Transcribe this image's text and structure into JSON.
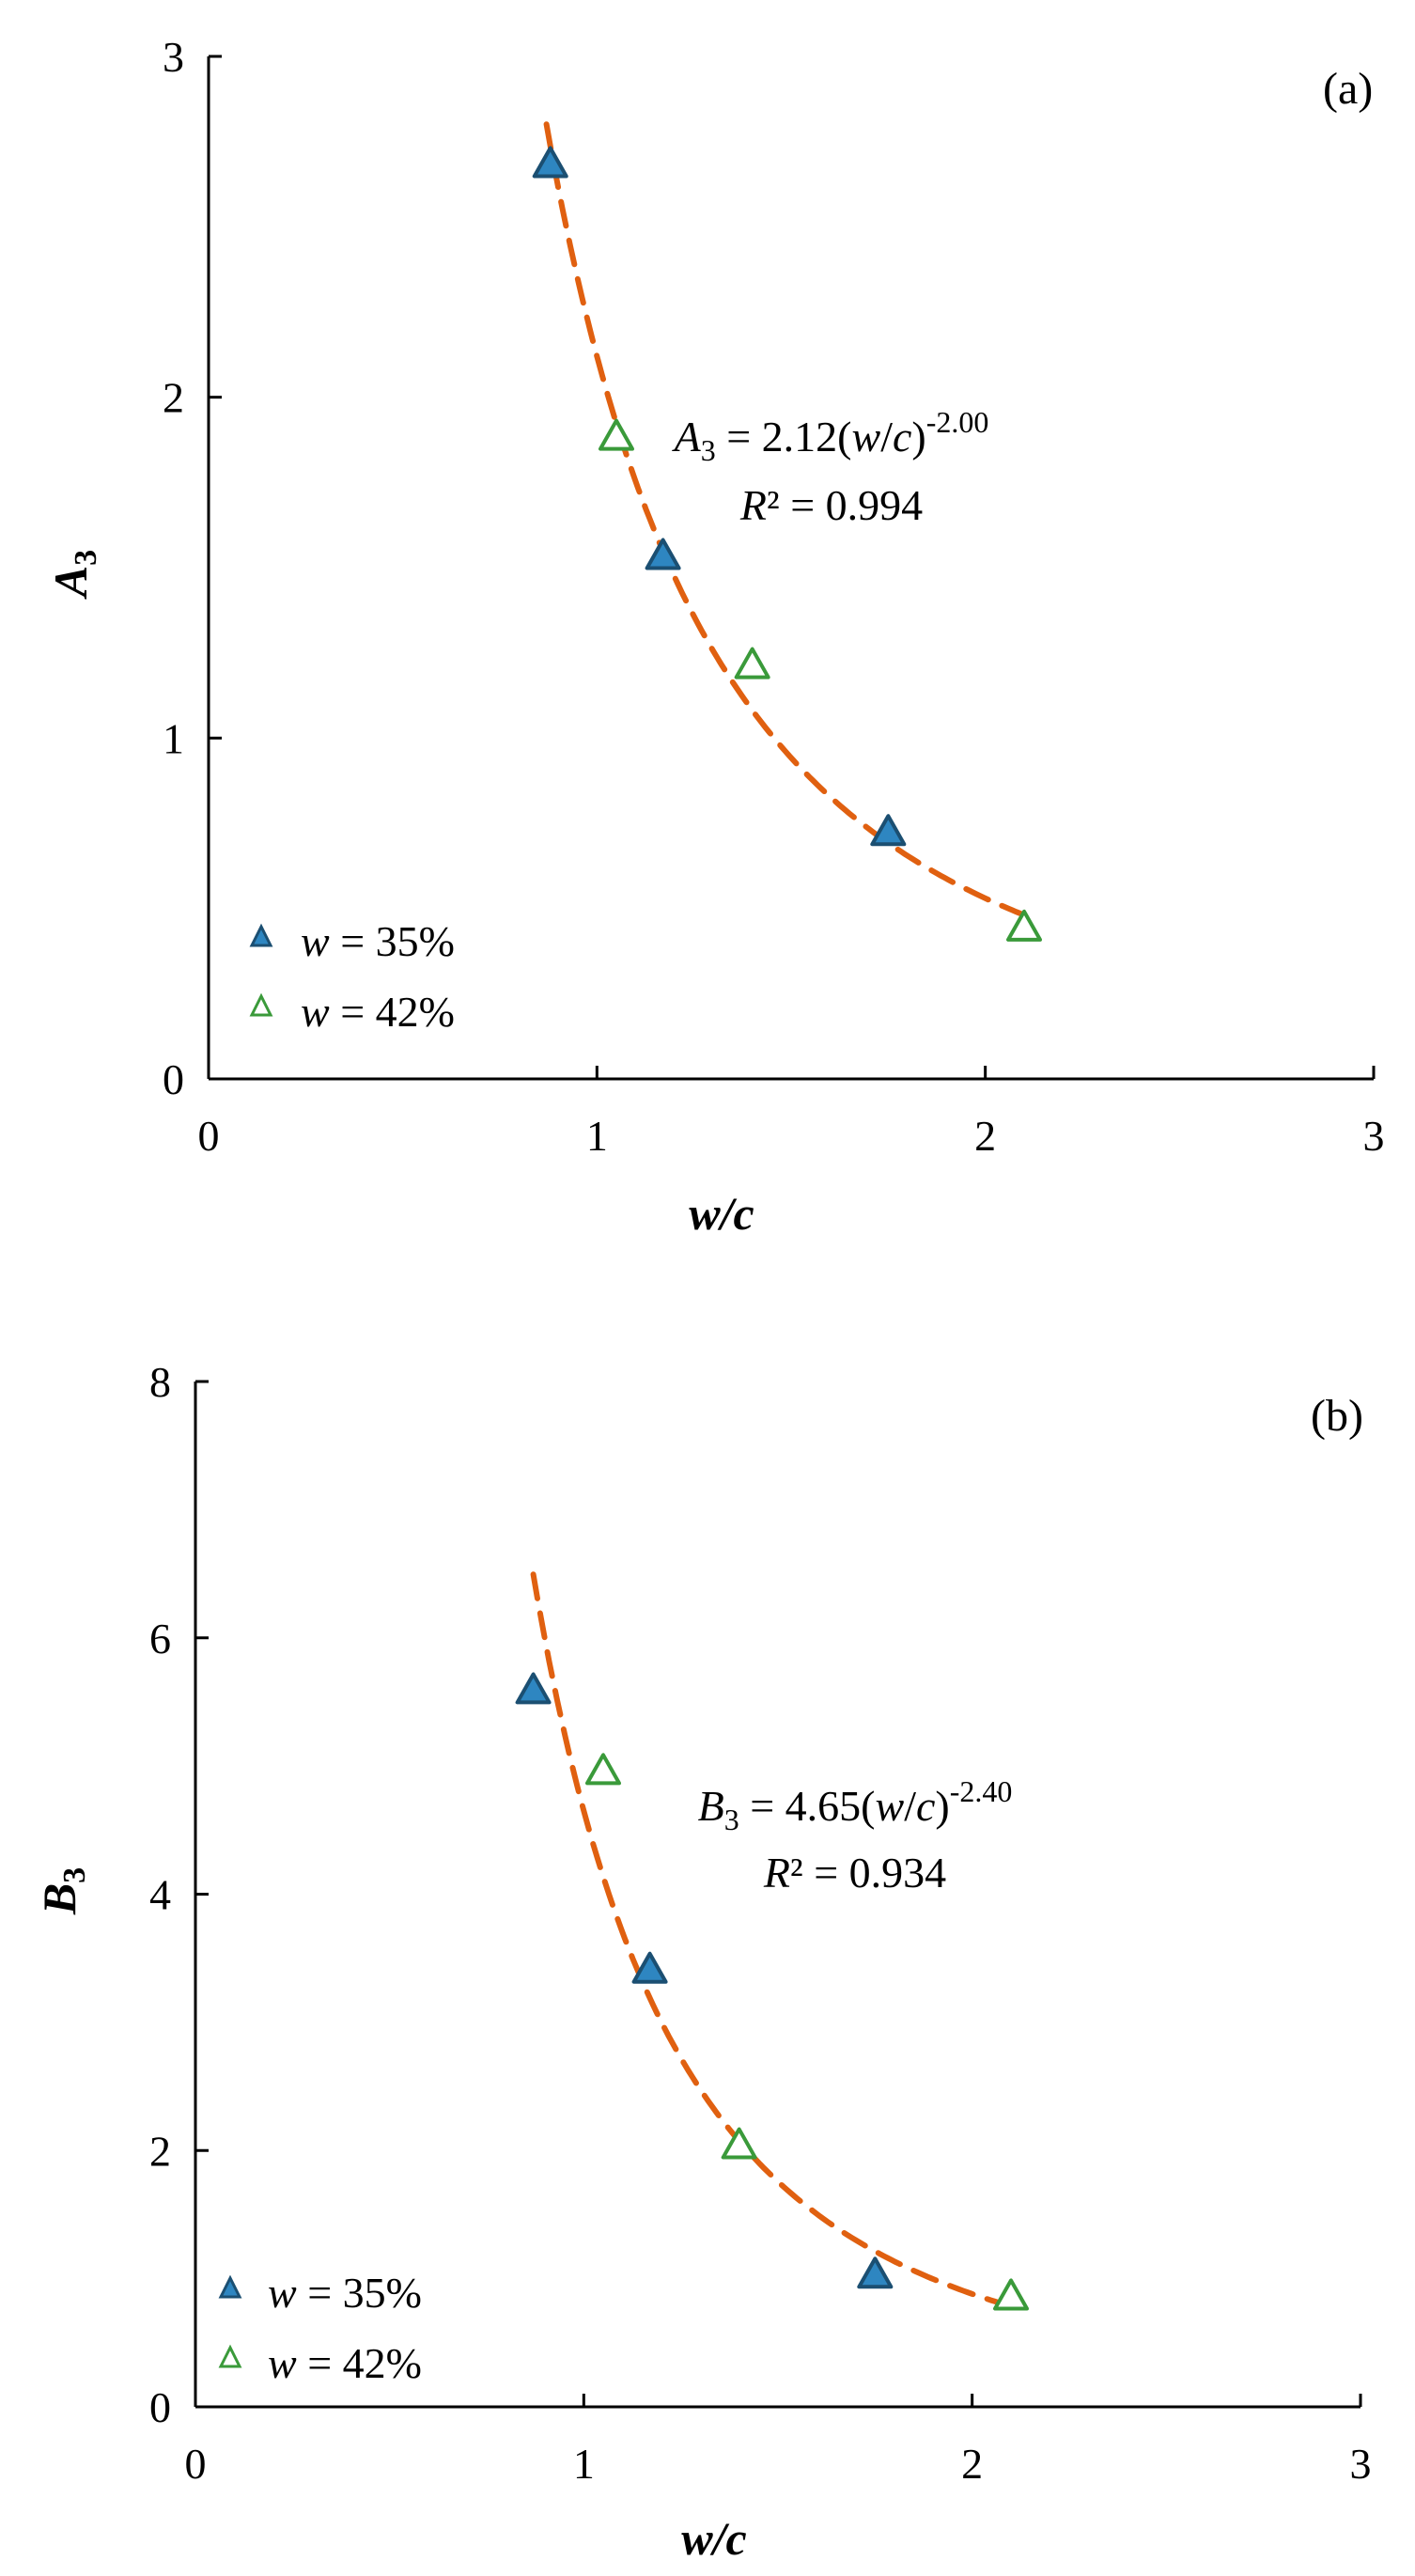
{
  "charts": [
    {
      "type": "scatter",
      "panel_label": "(a)",
      "xlabel": "w/c",
      "ylabel_main": "A",
      "ylabel_sub": "3",
      "xlim": [
        0,
        3
      ],
      "ylim": [
        0,
        3
      ],
      "xticks": [
        "0",
        "1",
        "2",
        "3"
      ],
      "yticks": [
        "0",
        "1",
        "2",
        "3"
      ],
      "series": [
        {
          "name": "w = 35%",
          "w": "w",
          "label_rest": " = 35%",
          "x": [
            0.88,
            1.17,
            1.75
          ],
          "y": [
            2.68,
            1.53,
            0.72
          ],
          "fill": "#2e86c1",
          "stroke": "#1b4f72"
        },
        {
          "name": "w = 42%",
          "w": "w",
          "label_rest": " = 42%",
          "x": [
            1.05,
            1.4,
            2.1
          ],
          "y": [
            1.88,
            1.21,
            0.44
          ],
          "fill": "#ffffff",
          "stroke": "#3a9a3a"
        }
      ],
      "fit": {
        "coef": 2.12,
        "exp": -2.0,
        "x_range": [
          0.87,
          2.1
        ],
        "color": "#e06010"
      },
      "equation": {
        "var": "A",
        "sub": "3",
        "body": " = 2.12(",
        "w": "w",
        "slash": "/",
        "c": "c",
        "close": ")",
        "exp": "-2.00"
      },
      "r2": {
        "r": "R",
        "sup": "²",
        "rest": " = 0.994"
      }
    },
    {
      "type": "scatter",
      "panel_label": "(b)",
      "xlabel": "w/c",
      "ylabel_main": "B",
      "ylabel_sub": "3",
      "xlim": [
        0,
        3
      ],
      "ylim": [
        0,
        8
      ],
      "xticks": [
        "0",
        "1",
        "2",
        "3"
      ],
      "yticks": [
        "0",
        "2",
        "4",
        "6",
        "8"
      ],
      "series": [
        {
          "name": "w = 35%",
          "w": "w",
          "label_rest": " = 35%",
          "x": [
            0.87,
            1.17,
            1.75
          ],
          "y": [
            5.58,
            3.4,
            1.02
          ],
          "fill": "#2e86c1",
          "stroke": "#1b4f72"
        },
        {
          "name": "w = 42%",
          "w": "w",
          "label_rest": " = 42%",
          "x": [
            1.05,
            1.4,
            2.1
          ],
          "y": [
            4.95,
            2.03,
            0.85
          ],
          "fill": "#ffffff",
          "stroke": "#3a9a3a"
        }
      ],
      "fit": {
        "coef": 4.65,
        "exp": -2.4,
        "x_range": [
          0.87,
          2.1
        ],
        "color": "#e06010"
      },
      "equation": {
        "var": "B",
        "sub": "3",
        "body": " = 4.65(",
        "w": "w",
        "slash": "/",
        "c": "c",
        "close": ")",
        "exp": "-2.40"
      },
      "r2": {
        "r": "R",
        "sup": "²",
        "rest": " = 0.934"
      }
    }
  ],
  "chart_data": [
    {
      "type": "scatter",
      "title": "(a)",
      "xlabel": "w/c",
      "ylabel": "A3",
      "xlim": [
        0,
        3
      ],
      "ylim": [
        0,
        3
      ],
      "series": [
        {
          "name": "w = 35%",
          "x": [
            0.88,
            1.17,
            1.75
          ],
          "y": [
            2.68,
            1.53,
            0.72
          ]
        },
        {
          "name": "w = 42%",
          "x": [
            1.05,
            1.4,
            2.1
          ],
          "y": [
            1.88,
            1.21,
            0.44
          ]
        }
      ],
      "trendline": "A3 = 2.12(w/c)^-2.00, R² = 0.994"
    },
    {
      "type": "scatter",
      "title": "(b)",
      "xlabel": "w/c",
      "ylabel": "B3",
      "xlim": [
        0,
        3
      ],
      "ylim": [
        0,
        8
      ],
      "series": [
        {
          "name": "w = 35%",
          "x": [
            0.87,
            1.17,
            1.75
          ],
          "y": [
            5.58,
            3.4,
            1.02
          ]
        },
        {
          "name": "w = 42%",
          "x": [
            1.05,
            1.4,
            2.1
          ],
          "y": [
            4.95,
            2.03,
            0.85
          ]
        }
      ],
      "trendline": "B3 = 4.65(w/c)^-2.40, R² = 0.934"
    }
  ]
}
